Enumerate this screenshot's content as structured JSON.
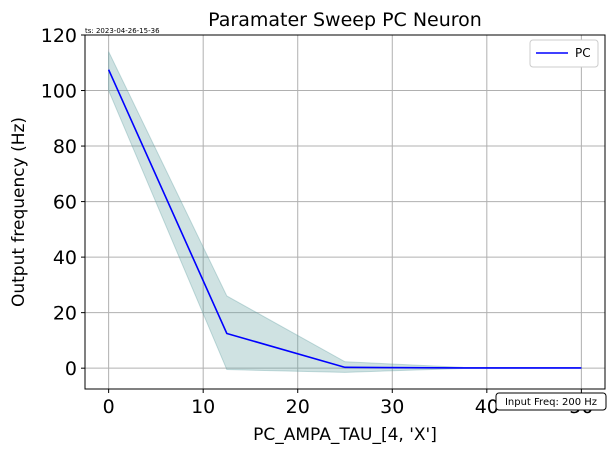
{
  "timestamp": "ts: 2023-04-26-15-36",
  "annotation": "Input Freq: 200 Hz",
  "colors": {
    "line": "#0000ff",
    "band": "#5f9ea0",
    "grid": "#b0b0b0",
    "axis": "#000000"
  },
  "chart_data": {
    "type": "line",
    "title": "Paramater Sweep PC Neuron",
    "xlabel": "PC_AMPA_TAU_[4, 'X']",
    "ylabel": "Output frequency (Hz)",
    "xlim": [
      -2.5,
      52.5
    ],
    "ylim": [
      -7.5,
      120
    ],
    "xticks": [
      0,
      10,
      20,
      30,
      40,
      50
    ],
    "yticks": [
      0,
      20,
      40,
      60,
      80,
      100,
      120
    ],
    "grid": true,
    "legend_position": "top-right",
    "series": [
      {
        "name": "PC",
        "x": [
          0,
          12.5,
          25,
          37.5,
          50
        ],
        "y": [
          107.5,
          12.5,
          0.3,
          0.1,
          0.1
        ],
        "band_upper": [
          114,
          26,
          2.3,
          0.3,
          0.2
        ],
        "band_lower": [
          100,
          -0.5,
          -1.5,
          -0.1,
          0.0
        ]
      }
    ]
  }
}
